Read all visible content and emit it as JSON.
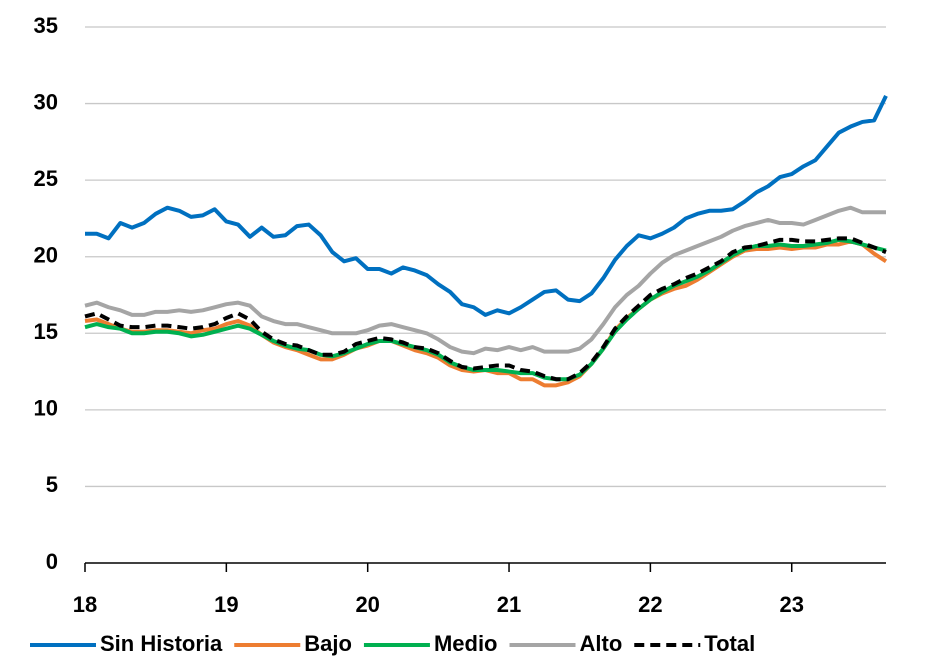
{
  "chart_data": {
    "type": "line",
    "x": [
      18,
      18.083,
      18.167,
      18.25,
      18.333,
      18.417,
      18.5,
      18.583,
      18.667,
      18.75,
      18.833,
      18.917,
      19,
      19.083,
      19.167,
      19.25,
      19.333,
      19.417,
      19.5,
      19.583,
      19.667,
      19.75,
      19.833,
      19.917,
      20,
      20.083,
      20.167,
      20.25,
      20.333,
      20.417,
      20.5,
      20.583,
      20.667,
      20.75,
      20.833,
      20.917,
      21,
      21.083,
      21.167,
      21.25,
      21.333,
      21.417,
      21.5,
      21.583,
      21.667,
      21.75,
      21.833,
      21.917,
      22,
      22.083,
      22.167,
      22.25,
      22.333,
      22.417,
      22.5,
      22.583,
      22.667,
      22.75,
      22.833,
      22.917,
      23,
      23.083,
      23.167,
      23.25,
      23.333,
      23.417,
      23.5,
      23.583,
      23.667
    ],
    "series": [
      {
        "name": "Sin Historia",
        "color": "#0070c0",
        "values": [
          21.5,
          21.5,
          21.2,
          22.2,
          21.9,
          22.2,
          22.8,
          23.2,
          23.0,
          22.6,
          22.7,
          23.1,
          22.3,
          22.1,
          21.3,
          21.9,
          21.3,
          21.4,
          22.0,
          22.1,
          21.4,
          20.3,
          19.7,
          19.9,
          19.2,
          19.2,
          18.9,
          19.3,
          19.1,
          18.8,
          18.2,
          17.7,
          16.9,
          16.7,
          16.2,
          16.5,
          16.3,
          16.7,
          17.2,
          17.7,
          17.8,
          17.2,
          17.1,
          17.6,
          18.6,
          19.8,
          20.7,
          21.4,
          21.2,
          21.5,
          21.9,
          22.5,
          22.8,
          23.0,
          23.0,
          23.1,
          23.6,
          24.2,
          24.6,
          25.2,
          25.4,
          25.9,
          26.3,
          27.2,
          28.1,
          28.5,
          28.8,
          28.9,
          30.5
        ]
      },
      {
        "name": "Bajo",
        "color": "#ed7d31",
        "values": [
          15.8,
          15.9,
          15.6,
          15.3,
          15.1,
          15.1,
          15.2,
          15.2,
          15.1,
          15.0,
          15.2,
          15.3,
          15.6,
          15.8,
          15.5,
          14.9,
          14.4,
          14.1,
          13.9,
          13.6,
          13.3,
          13.3,
          13.6,
          14.0,
          14.2,
          14.5,
          14.5,
          14.2,
          13.9,
          13.7,
          13.4,
          12.9,
          12.6,
          12.5,
          12.6,
          12.4,
          12.4,
          12.0,
          12.0,
          11.6,
          11.6,
          11.8,
          12.2,
          13.0,
          14.0,
          15.2,
          16.0,
          16.6,
          17.2,
          17.6,
          17.9,
          18.1,
          18.5,
          19.0,
          19.5,
          20.0,
          20.4,
          20.5,
          20.5,
          20.6,
          20.5,
          20.6,
          20.6,
          20.8,
          20.8,
          21.0,
          20.8,
          20.2,
          19.7
        ]
      },
      {
        "name": "Medio",
        "color": "#00b050",
        "values": [
          15.4,
          15.6,
          15.4,
          15.3,
          15.0,
          15.0,
          15.1,
          15.1,
          15.0,
          14.8,
          14.9,
          15.1,
          15.3,
          15.5,
          15.3,
          14.9,
          14.5,
          14.2,
          14.0,
          13.9,
          13.6,
          13.5,
          13.7,
          14.0,
          14.3,
          14.5,
          14.5,
          14.3,
          14.1,
          13.9,
          13.6,
          13.1,
          12.8,
          12.6,
          12.6,
          12.6,
          12.5,
          12.4,
          12.4,
          12.1,
          12.0,
          12.0,
          12.3,
          13.0,
          14.0,
          15.1,
          15.9,
          16.6,
          17.2,
          17.7,
          18.1,
          18.4,
          18.7,
          19.1,
          19.6,
          20.1,
          20.5,
          20.7,
          20.7,
          20.8,
          20.7,
          20.7,
          20.8,
          20.9,
          21.1,
          21.0,
          20.8,
          20.6,
          20.4
        ]
      },
      {
        "name": "Alto",
        "color": "#a5a5a5",
        "values": [
          16.8,
          17.0,
          16.7,
          16.5,
          16.2,
          16.2,
          16.4,
          16.4,
          16.5,
          16.4,
          16.5,
          16.7,
          16.9,
          17.0,
          16.8,
          16.1,
          15.8,
          15.6,
          15.6,
          15.4,
          15.2,
          15.0,
          15.0,
          15.0,
          15.2,
          15.5,
          15.6,
          15.4,
          15.2,
          15.0,
          14.6,
          14.1,
          13.8,
          13.7,
          14.0,
          13.9,
          14.1,
          13.9,
          14.1,
          13.8,
          13.8,
          13.8,
          14.0,
          14.6,
          15.6,
          16.7,
          17.5,
          18.1,
          18.9,
          19.6,
          20.1,
          20.4,
          20.7,
          21.0,
          21.3,
          21.7,
          22.0,
          22.2,
          22.4,
          22.2,
          22.2,
          22.1,
          22.4,
          22.7,
          23.0,
          23.2,
          22.9,
          22.9,
          22.9
        ]
      },
      {
        "name": "Total",
        "color": "#000000",
        "dashed": true,
        "values": [
          16.1,
          16.3,
          15.9,
          15.5,
          15.4,
          15.4,
          15.5,
          15.5,
          15.4,
          15.3,
          15.4,
          15.6,
          16.0,
          16.3,
          15.9,
          15.1,
          14.6,
          14.3,
          14.2,
          13.9,
          13.6,
          13.6,
          13.8,
          14.3,
          14.5,
          14.7,
          14.6,
          14.4,
          14.1,
          14.0,
          13.7,
          13.2,
          12.8,
          12.7,
          12.8,
          12.9,
          12.9,
          12.6,
          12.5,
          12.2,
          12.0,
          12.0,
          12.4,
          13.1,
          14.1,
          15.3,
          16.1,
          16.8,
          17.5,
          17.9,
          18.2,
          18.6,
          18.9,
          19.3,
          19.7,
          20.3,
          20.6,
          20.7,
          20.9,
          21.1,
          21.1,
          21.0,
          21.0,
          21.1,
          21.2,
          21.2,
          20.9,
          20.6,
          20.3
        ]
      }
    ],
    "xlim": [
      18,
      23.667
    ],
    "xticks": [
      18,
      19,
      20,
      21,
      22,
      23
    ],
    "ylim": [
      0,
      35
    ],
    "yticks": [
      0,
      5,
      10,
      15,
      20,
      25,
      30,
      35
    ],
    "grid": true,
    "legend": "bottom"
  }
}
